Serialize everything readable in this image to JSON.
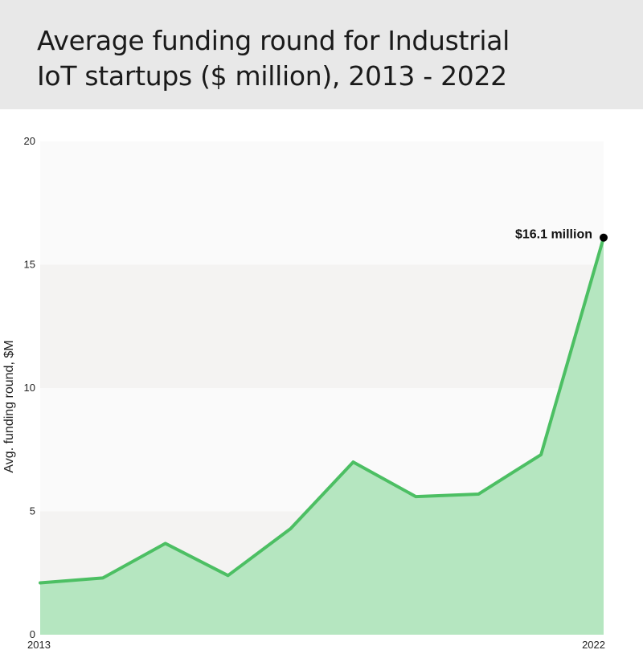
{
  "header": {
    "title_line1": "Average funding round for Industrial",
    "title_line2": "IoT startups ($ million), 2013 - 2022"
  },
  "chart_data": {
    "type": "area",
    "title": "Average funding round for Industrial IoT startups ($ million), 2013 - 2022",
    "xlabel": "",
    "ylabel": "Avg. funding round, $M",
    "x": [
      2013,
      2014,
      2015,
      2016,
      2017,
      2018,
      2019,
      2020,
      2021,
      2022
    ],
    "x_tick_labels": [
      "2013",
      "2022"
    ],
    "y_ticks": [
      0,
      5,
      10,
      15,
      20
    ],
    "ylim": [
      0,
      20
    ],
    "series": [
      {
        "values": [
          2.1,
          2.3,
          3.7,
          2.4,
          4.3,
          7.0,
          5.6,
          5.7,
          7.3,
          16.1
        ]
      }
    ],
    "annotation": {
      "text": "$16.1 million",
      "x": 2022,
      "y": 16.1
    },
    "colors": {
      "line": "#4cbf63",
      "fill": "#b5e6c0",
      "band_dark": "#f4f3f2",
      "band_light": "#fafafa",
      "marker": "#000000"
    },
    "grid": false
  }
}
